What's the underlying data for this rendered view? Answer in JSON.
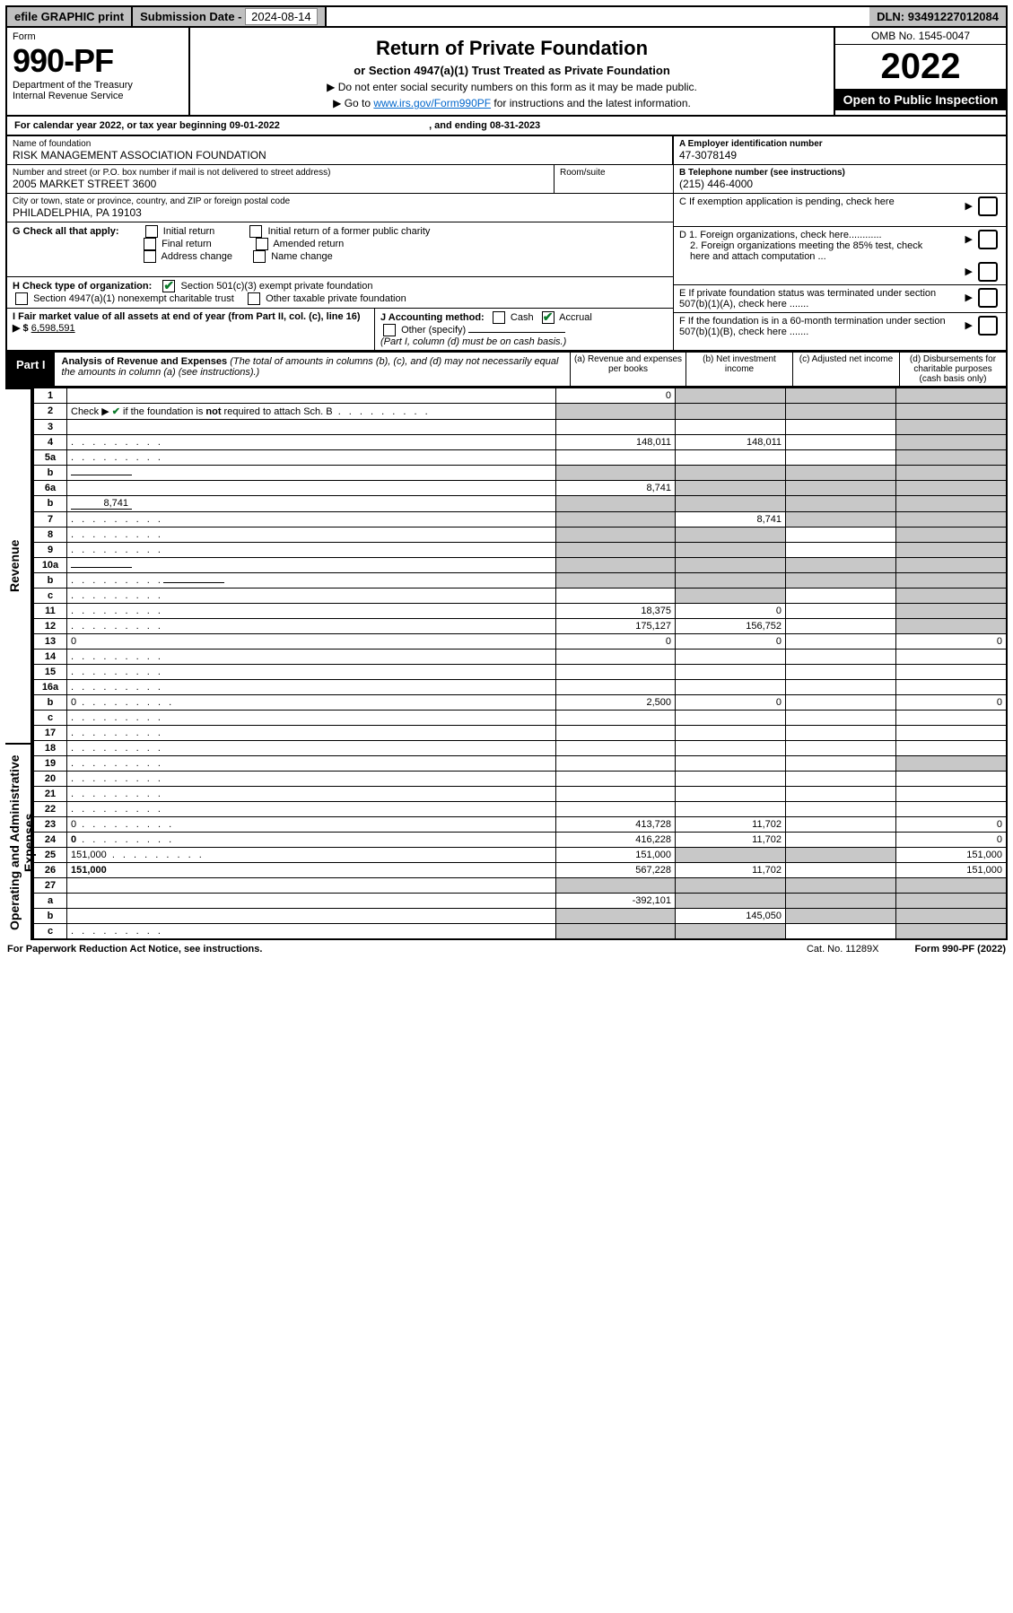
{
  "topbar": {
    "efile": "efile GRAPHIC print",
    "subdate_label": "Submission Date - ",
    "subdate_value": "2024-08-14",
    "dln_label": "DLN: ",
    "dln_value": "93491227012084"
  },
  "header": {
    "form_label": "Form",
    "form_no": "990-PF",
    "dept1": "Department of the Treasury",
    "dept2": "Internal Revenue Service",
    "title": "Return of Private Foundation",
    "subtitle": "or Section 4947(a)(1) Trust Treated as Private Foundation",
    "note1": "▶ Do not enter social security numbers on this form as it may be made public.",
    "note2_pre": "▶ Go to ",
    "note2_link": "www.irs.gov/Form990PF",
    "note2_post": " for instructions and the latest information.",
    "omb": "OMB No. 1545-0047",
    "year": "2022",
    "open": "Open to Public Inspection"
  },
  "calyear": {
    "pre": "For calendar year 2022, or tax year beginning ",
    "begin": "09-01-2022",
    "mid": ", and ending ",
    "end": "08-31-2023"
  },
  "info": {
    "name_lab": "Name of foundation",
    "name": "RISK MANAGEMENT ASSOCIATION FOUNDATION",
    "addr_lab": "Number and street (or P.O. box number if mail is not delivered to street address)",
    "addr": "2005 MARKET STREET 3600",
    "room_lab": "Room/suite",
    "room": "",
    "city_lab": "City or town, state or province, country, and ZIP or foreign postal code",
    "city": "PHILADELPHIA, PA  19103",
    "A_lab": "A Employer identification number",
    "A": "47-3078149",
    "B_lab": "B Telephone number (see instructions)",
    "B": "(215) 446-4000",
    "C": "C If exemption application is pending, check here",
    "D1": "D 1. Foreign organizations, check here............",
    "D2": "2. Foreign organizations meeting the 85% test, check here and attach computation ...",
    "E": "E  If private foundation status was terminated under section 507(b)(1)(A), check here .......",
    "F": "F  If the foundation is in a 60-month termination under section 507(b)(1)(B), check here .......",
    "G_lab": "G Check all that apply:",
    "G_opts": [
      "Initial return",
      "Final return",
      "Address change",
      "Initial return of a former public charity",
      "Amended return",
      "Name change"
    ],
    "H_lab": "H Check type of organization:",
    "H_501c3": "Section 501(c)(3) exempt private foundation",
    "H_4947": "Section 4947(a)(1) nonexempt charitable trust",
    "H_other": "Other taxable private foundation",
    "I_lab": "I Fair market value of all assets at end of year (from Part II, col. (c), line 16) ▶ $",
    "I_val": "6,598,591",
    "J_lab": "J Accounting method:",
    "J_cash": "Cash",
    "J_accrual": "Accrual",
    "J_other": "Other (specify)",
    "J_note": "(Part I, column (d) must be on cash basis.)"
  },
  "part1": {
    "label": "Part I",
    "title": "Analysis of Revenue and Expenses",
    "title_note": " (The total of amounts in columns (b), (c), and (d) may not necessarily equal the amounts in column (a) (see instructions).)",
    "col_a": "(a)  Revenue and expenses per books",
    "col_b": "(b)  Net investment income",
    "col_c": "(c)  Adjusted net income",
    "col_d": "(d)  Disbursements for charitable purposes (cash basis only)",
    "side_rev": "Revenue",
    "side_exp": "Operating and Administrative Expenses"
  },
  "rows": [
    {
      "n": "1",
      "d": "",
      "a": "0",
      "b": "",
      "c": "",
      "shade": [
        "b",
        "c",
        "d"
      ]
    },
    {
      "n": "2",
      "d": "",
      "dots": true,
      "a": "",
      "b": "",
      "c": "",
      "shade": [
        "a",
        "b",
        "c",
        "d"
      ],
      "hasCheck": true
    },
    {
      "n": "3",
      "d": "",
      "a": "",
      "b": "",
      "c": "",
      "shade": [
        "d"
      ]
    },
    {
      "n": "4",
      "d": "",
      "dots": true,
      "a": "148,011",
      "b": "148,011",
      "c": "",
      "shade": [
        "d"
      ]
    },
    {
      "n": "5a",
      "d": "",
      "dots": true,
      "a": "",
      "b": "",
      "c": "",
      "shade": [
        "d"
      ]
    },
    {
      "n": "b",
      "d": "",
      "inline": "",
      "a": "",
      "b": "",
      "c": "",
      "shade": [
        "a",
        "b",
        "c",
        "d"
      ]
    },
    {
      "n": "6a",
      "d": "",
      "a": "8,741",
      "b": "",
      "c": "",
      "shade": [
        "b",
        "c",
        "d"
      ]
    },
    {
      "n": "b",
      "d": "",
      "inline": "8,741",
      "a": "",
      "b": "",
      "c": "",
      "shade": [
        "a",
        "b",
        "c",
        "d"
      ]
    },
    {
      "n": "7",
      "d": "",
      "dots": true,
      "a": "",
      "b": "8,741",
      "c": "",
      "shade": [
        "a",
        "c",
        "d"
      ]
    },
    {
      "n": "8",
      "d": "",
      "dots": true,
      "a": "",
      "b": "",
      "c": "",
      "shade": [
        "a",
        "b",
        "d"
      ]
    },
    {
      "n": "9",
      "d": "",
      "dots": true,
      "a": "",
      "b": "",
      "c": "",
      "shade": [
        "a",
        "b",
        "d"
      ]
    },
    {
      "n": "10a",
      "d": "",
      "inline": "",
      "a": "",
      "b": "",
      "c": "",
      "shade": [
        "a",
        "b",
        "c",
        "d"
      ]
    },
    {
      "n": "b",
      "d": "",
      "dots": true,
      "inline": "",
      "a": "",
      "b": "",
      "c": "",
      "shade": [
        "a",
        "b",
        "c",
        "d"
      ]
    },
    {
      "n": "c",
      "d": "",
      "dots": true,
      "a": "",
      "b": "",
      "c": "",
      "shade": [
        "b",
        "d"
      ]
    },
    {
      "n": "11",
      "d": "",
      "dots": true,
      "a": "18,375",
      "b": "0",
      "c": "",
      "shade": [
        "d"
      ]
    },
    {
      "n": "12",
      "d": "",
      "dots": true,
      "bold": true,
      "a": "175,127",
      "b": "156,752",
      "c": "",
      "shade": [
        "d"
      ]
    },
    {
      "n": "13",
      "d": "0",
      "a": "0",
      "b": "0",
      "c": ""
    },
    {
      "n": "14",
      "d": "",
      "dots": true,
      "a": "",
      "b": "",
      "c": ""
    },
    {
      "n": "15",
      "d": "",
      "dots": true,
      "a": "",
      "b": "",
      "c": ""
    },
    {
      "n": "16a",
      "d": "",
      "dots": true,
      "a": "",
      "b": "",
      "c": ""
    },
    {
      "n": "b",
      "d": "0",
      "dots": true,
      "a": "2,500",
      "b": "0",
      "c": ""
    },
    {
      "n": "c",
      "d": "",
      "dots": true,
      "a": "",
      "b": "",
      "c": ""
    },
    {
      "n": "17",
      "d": "",
      "dots": true,
      "a": "",
      "b": "",
      "c": ""
    },
    {
      "n": "18",
      "d": "",
      "dots": true,
      "a": "",
      "b": "",
      "c": ""
    },
    {
      "n": "19",
      "d": "",
      "dots": true,
      "a": "",
      "b": "",
      "c": "",
      "shade": [
        "d"
      ]
    },
    {
      "n": "20",
      "d": "",
      "dots": true,
      "a": "",
      "b": "",
      "c": ""
    },
    {
      "n": "21",
      "d": "",
      "dots": true,
      "a": "",
      "b": "",
      "c": ""
    },
    {
      "n": "22",
      "d": "",
      "dots": true,
      "a": "",
      "b": "",
      "c": ""
    },
    {
      "n": "23",
      "d": "0",
      "dots": true,
      "a": "413,728",
      "b": "11,702",
      "c": ""
    },
    {
      "n": "24",
      "d": "0",
      "dots": true,
      "bold": true,
      "a": "416,228",
      "b": "11,702",
      "c": ""
    },
    {
      "n": "25",
      "d": "151,000",
      "dots": true,
      "a": "151,000",
      "b": "",
      "c": "",
      "shade": [
        "b",
        "c"
      ]
    },
    {
      "n": "26",
      "d": "151,000",
      "bold": true,
      "a": "567,228",
      "b": "11,702",
      "c": ""
    },
    {
      "n": "27",
      "d": "",
      "a": "",
      "b": "",
      "c": "",
      "shade": [
        "a",
        "b",
        "c",
        "d"
      ]
    },
    {
      "n": "a",
      "d": "",
      "bold": true,
      "a": "-392,101",
      "b": "",
      "c": "",
      "shade": [
        "b",
        "c",
        "d"
      ]
    },
    {
      "n": "b",
      "d": "",
      "bold": true,
      "a": "",
      "b": "145,050",
      "c": "",
      "shade": [
        "a",
        "c",
        "d"
      ]
    },
    {
      "n": "c",
      "d": "",
      "dots": true,
      "bold": true,
      "a": "",
      "b": "",
      "c": "",
      "shade": [
        "a",
        "b",
        "d"
      ]
    }
  ],
  "footer": {
    "left": "For Paperwork Reduction Act Notice, see instructions.",
    "mid": "Cat. No. 11289X",
    "right": "Form 990-PF (2022)"
  }
}
